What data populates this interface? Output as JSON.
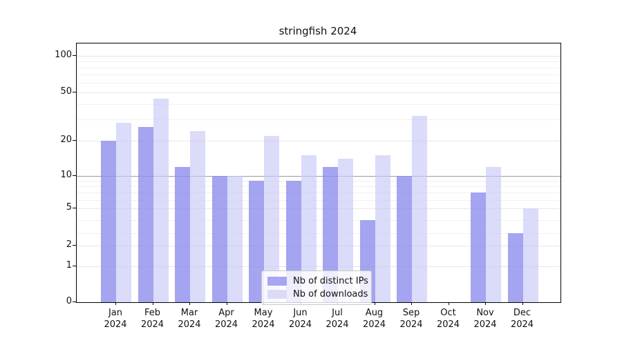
{
  "chart_data": {
    "type": "bar",
    "title": "stringfish 2024",
    "categories": [
      "Jan",
      "Feb",
      "Mar",
      "Apr",
      "May",
      "Jun",
      "Jul",
      "Aug",
      "Sep",
      "Oct",
      "Nov",
      "Dec"
    ],
    "x_year_label": "2024",
    "series": [
      {
        "name": "Nb of distinct IPs",
        "color": "#a6a6f3",
        "bar_color": "rgba(141,141,238,0.8)",
        "values": [
          20,
          26,
          12,
          10,
          9,
          9,
          12,
          4,
          10,
          0,
          7,
          3
        ]
      },
      {
        "name": "Nb of downloads",
        "color": "#dbdbf9",
        "bar_color": "rgba(200,200,247,0.65)",
        "values": [
          28,
          44,
          24,
          10,
          22,
          15,
          14,
          15,
          32,
          0,
          12,
          5
        ]
      }
    ],
    "y_axis": {
      "scale": "symlog",
      "tick_labels": [
        "100",
        "50",
        "20",
        "10",
        "5",
        "2",
        "1",
        "0"
      ],
      "minor_gridlines": [
        3,
        4,
        6,
        7,
        8,
        9,
        30,
        40,
        60,
        70,
        80,
        90
      ],
      "emphasized_gridline": 10,
      "ylim": [
        0,
        120
      ]
    },
    "legend": {
      "position": "lower center"
    },
    "grid": "on"
  }
}
